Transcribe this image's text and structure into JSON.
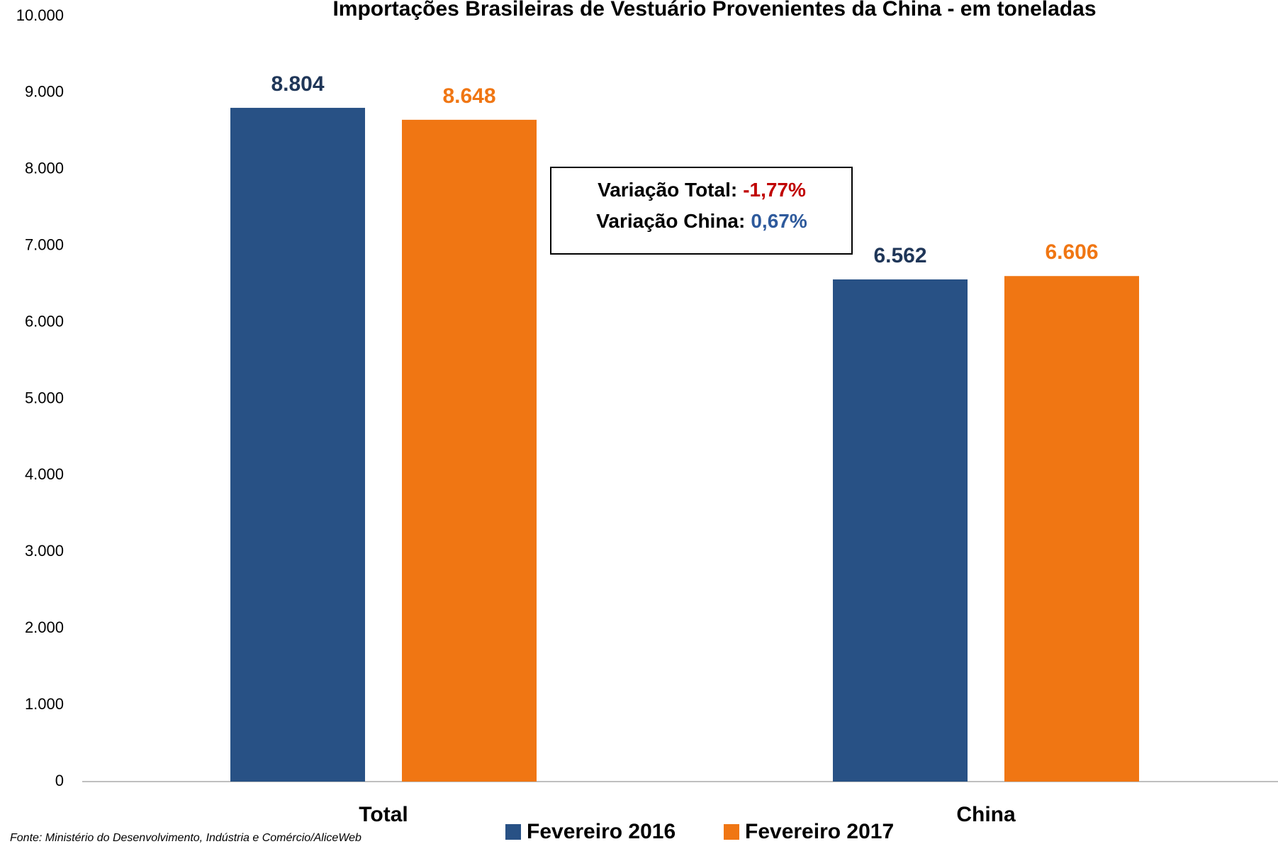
{
  "chart_data": {
    "type": "bar",
    "title": "Importações Brasileiras de Vestuário Provenientes da China - em toneladas",
    "categories": [
      "Total",
      "China"
    ],
    "series": [
      {
        "name": "Fevereiro 2016",
        "color": "#285185",
        "label_color": "#1f3658",
        "values": [
          8804,
          6562
        ],
        "value_labels": [
          "8.804",
          "6.562"
        ]
      },
      {
        "name": "Fevereiro 2017",
        "color": "#f07613",
        "label_color": "#f07613",
        "values": [
          8648,
          6606
        ],
        "value_labels": [
          "8.648",
          "6.606"
        ]
      }
    ],
    "ylim": [
      0,
      10000
    ],
    "yticks": [
      0,
      {
        "value": 1000,
        "label": "1.000"
      },
      {
        "value": 2000,
        "label": "2.000"
      },
      {
        "value": 3000,
        "label": "3.000"
      },
      {
        "value": 4000,
        "label": "4.000"
      },
      {
        "value": 5000,
        "label": "5.000"
      },
      {
        "value": 6000,
        "label": "6.000"
      },
      {
        "value": 7000,
        "label": "7.000"
      },
      {
        "value": 8000,
        "label": "8.000"
      },
      {
        "value": 9000,
        "label": "9.000"
      },
      {
        "value": 10000,
        "label": "10.000"
      }
    ],
    "grid": false,
    "legend": "bottom",
    "annotations": [
      {
        "label": "Variação Total:",
        "value": "-1,77%",
        "color": "#c00000"
      },
      {
        "label": "Variação China:",
        "value": "0,67%",
        "color": "#2e5a9c"
      }
    ],
    "source": "Fonte: Ministério do Desenvolvimento, Indústria e Comércio/AliceWeb"
  }
}
